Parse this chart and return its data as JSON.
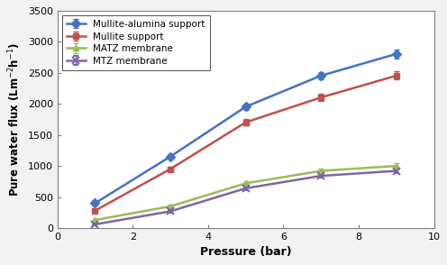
{
  "pressure": [
    1,
    3,
    5,
    7,
    9
  ],
  "mullite_alumina": [
    400,
    1150,
    1950,
    2450,
    2800
  ],
  "mullite_alumina_err": [
    30,
    40,
    50,
    60,
    70
  ],
  "mullite": [
    280,
    950,
    1700,
    2100,
    2450
  ],
  "mullite_err": [
    25,
    35,
    50,
    55,
    65
  ],
  "matz": [
    130,
    350,
    720,
    920,
    1000
  ],
  "matz_err": [
    20,
    25,
    30,
    35,
    40
  ],
  "mtz": [
    60,
    270,
    640,
    840,
    920
  ],
  "mtz_err": [
    15,
    20,
    25,
    30,
    35
  ],
  "colors": {
    "mullite_alumina": "#4472C4",
    "mullite": "#C0504D",
    "matz": "#9BBB59",
    "mtz": "#8064A2"
  },
  "xlabel": "Pressure (bar)",
  "ylabel": "Pure water flux (Lm$^{-2}$h$^{-1}$)",
  "xlim": [
    0.5,
    10
  ],
  "ylim": [
    0,
    3500
  ],
  "yticks": [
    0,
    500,
    1000,
    1500,
    2000,
    2500,
    3000,
    3500
  ],
  "xticks": [
    0,
    2,
    4,
    6,
    8,
    10
  ],
  "legend_labels": [
    "Mullite-alumina support",
    "Mullite support",
    "MATZ membrane",
    "MTZ membrane"
  ],
  "spine_color": "#808080",
  "figure_bg": "#f0f0f0"
}
